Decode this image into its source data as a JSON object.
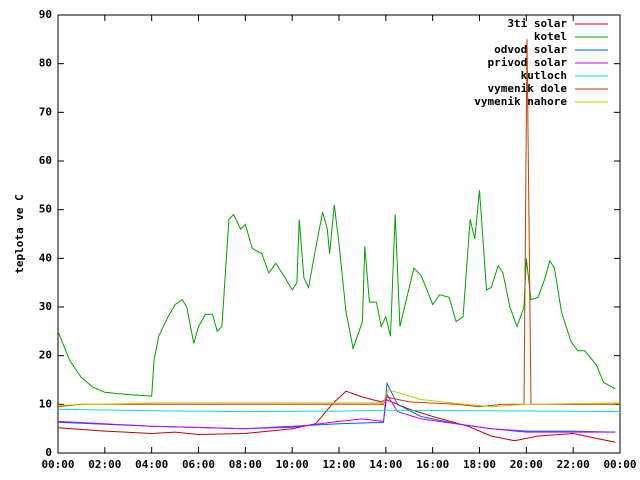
{
  "chart_data": {
    "type": "line",
    "y_label": "teplota ve C",
    "xlim": [
      0,
      24
    ],
    "ylim": [
      0,
      90
    ],
    "xticks": [
      {
        "value": 0,
        "label": "00:00"
      },
      {
        "value": 2,
        "label": "02:00"
      },
      {
        "value": 4,
        "label": "04:00"
      },
      {
        "value": 6,
        "label": "06:00"
      },
      {
        "value": 8,
        "label": "08:00"
      },
      {
        "value": 10,
        "label": "10:00"
      },
      {
        "value": 12,
        "label": "12:00"
      },
      {
        "value": 14,
        "label": "14:00"
      },
      {
        "value": 16,
        "label": "16:00"
      },
      {
        "value": 18,
        "label": "18:00"
      },
      {
        "value": 20,
        "label": "20:00"
      },
      {
        "value": 22,
        "label": "22:00"
      },
      {
        "value": 24,
        "label": "00:00"
      }
    ],
    "yticks": [
      0,
      10,
      20,
      30,
      40,
      50,
      60,
      70,
      80,
      90
    ],
    "legend": "top-right",
    "series": [
      {
        "name": "3ti solar",
        "color": "#c00000",
        "x": [
          0,
          2,
          4,
          5,
          6,
          8,
          10,
          11,
          11.7,
          12.3,
          13,
          13.8,
          14,
          15,
          16,
          17.5,
          18.5,
          19.5,
          20.5,
          22,
          23,
          23.8
        ],
        "values": [
          5.2,
          4.5,
          4.0,
          4.3,
          3.8,
          4,
          5,
          6,
          10,
          12.7,
          11.5,
          10.5,
          11,
          9,
          7.5,
          5.5,
          3.5,
          2.5,
          3.5,
          4,
          3,
          2.2
        ]
      },
      {
        "name": "kotel",
        "color": "#00a000",
        "x": [
          0,
          0.5,
          1,
          1.5,
          2,
          3,
          4,
          4.1,
          4.3,
          4.7,
          5,
          5.3,
          5.5,
          5.8,
          6,
          6.3,
          6.6,
          6.8,
          7,
          7.3,
          7.5,
          7.8,
          8,
          8.3,
          8.7,
          9,
          9.3,
          9.7,
          10,
          10.2,
          10.3,
          10.5,
          10.7,
          11,
          11.3,
          11.5,
          11.6,
          11.8,
          12,
          12.3,
          12.6,
          13,
          13.1,
          13.3,
          13.6,
          13.8,
          14,
          14.2,
          14.4,
          14.6,
          14.9,
          15.2,
          15.5,
          15.8,
          16,
          16.3,
          16.7,
          17,
          17.3,
          17.6,
          17.8,
          18,
          18.3,
          18.5,
          18.8,
          19,
          19.3,
          19.6,
          19.9,
          20,
          20.2,
          20.5,
          20.8,
          21,
          21.2,
          21.5,
          21.9,
          22.2,
          22.5,
          23,
          23.3,
          23.8
        ],
        "values": [
          25,
          19,
          15.5,
          13.5,
          12.5,
          12,
          11.7,
          19,
          24,
          28,
          30.5,
          31.5,
          30,
          22.5,
          26,
          28.5,
          28.5,
          25,
          26,
          48,
          49,
          46,
          47,
          42,
          41,
          37,
          39,
          36,
          33.5,
          35,
          48,
          36,
          34,
          42,
          49.5,
          46,
          41,
          51,
          43,
          29,
          21.5,
          27,
          42.5,
          31,
          31,
          26,
          28,
          24,
          49,
          26,
          32,
          38,
          36.5,
          33,
          30.5,
          32.5,
          32,
          27,
          28,
          48,
          44,
          54,
          33.5,
          34,
          38.5,
          37,
          30,
          26,
          30,
          40,
          31.5,
          32,
          36,
          39.5,
          38,
          29,
          23,
          21,
          21,
          18,
          14.5,
          13.2
        ]
      },
      {
        "name": "odvod solar",
        "color": "#0060ff",
        "x": [
          0,
          4,
          8,
          10,
          12,
          13.9,
          14.05,
          14.5,
          15.5,
          17,
          18.5,
          20,
          22,
          23.8
        ],
        "values": [
          6.3,
          5.5,
          5,
          5.5,
          6,
          6.3,
          14.3,
          10,
          7.5,
          6,
          5,
          4.5,
          4.5,
          4.3
        ]
      },
      {
        "name": "privod solar",
        "color": "#c000ff",
        "x": [
          0,
          4,
          8,
          10,
          12,
          13,
          13.9,
          14.05,
          14.5,
          15.5,
          17,
          18.5,
          20,
          22,
          23.8
        ],
        "values": [
          6.5,
          5.5,
          5,
          5.3,
          6.5,
          7,
          6.5,
          12,
          8.5,
          7,
          6,
          5,
          4.3,
          4.3,
          4.3
        ]
      },
      {
        "name": "kutloch",
        "color": "#00e0e0",
        "x": [
          0,
          4,
          8,
          12,
          14,
          18,
          24
        ],
        "values": [
          9,
          8.7,
          8.5,
          8.6,
          8.8,
          8.7,
          8.5
        ]
      },
      {
        "name": "vymenik dole",
        "color": "#c04000",
        "x": [
          0,
          1,
          13.9,
          14,
          15,
          17,
          18,
          19,
          19.9,
          20.03,
          20.2,
          24
        ],
        "values": [
          9.5,
          10,
          10,
          11.5,
          10.5,
          10,
          9.5,
          10,
          10,
          85,
          10,
          10
        ]
      },
      {
        "name": "vymenik nahore",
        "color": "#c8c800",
        "x": [
          0,
          4,
          13.9,
          14.1,
          15.5,
          17,
          18.5,
          20,
          24
        ],
        "values": [
          9.8,
          10.3,
          10.3,
          13,
          11,
          10.2,
          9.5,
          10,
          10.3
        ]
      }
    ]
  }
}
